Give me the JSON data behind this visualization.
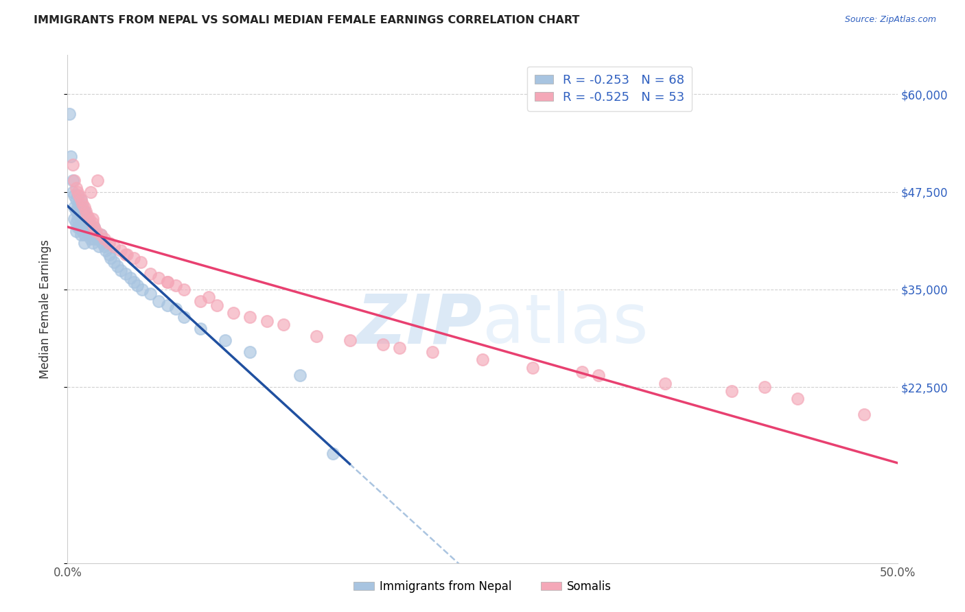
{
  "title": "IMMIGRANTS FROM NEPAL VS SOMALI MEDIAN FEMALE EARNINGS CORRELATION CHART",
  "source": "Source: ZipAtlas.com",
  "ylabel": "Median Female Earnings",
  "xlim": [
    0.0,
    0.5
  ],
  "ylim": [
    0,
    65000
  ],
  "yticks": [
    0,
    22500,
    35000,
    47500,
    60000
  ],
  "ytick_labels": [
    "",
    "$22,500",
    "$35,000",
    "$47,500",
    "$60,000"
  ],
  "xticks": [
    0.0,
    0.05,
    0.1,
    0.15,
    0.2,
    0.25,
    0.3,
    0.35,
    0.4,
    0.45,
    0.5
  ],
  "nepal_R": -0.253,
  "nepal_N": 68,
  "somali_R": -0.525,
  "somali_N": 53,
  "nepal_color": "#a8c4e0",
  "somali_color": "#f4a8b8",
  "nepal_line_color": "#2050a0",
  "somali_line_color": "#e84070",
  "dashed_line_color": "#aac4e0",
  "watermark_color": "#d0e4f4",
  "legend_label_nepal": "Immigrants from Nepal",
  "legend_label_somali": "Somalis",
  "nepal_x": [
    0.001,
    0.002,
    0.003,
    0.003,
    0.004,
    0.004,
    0.004,
    0.005,
    0.005,
    0.005,
    0.005,
    0.006,
    0.006,
    0.006,
    0.006,
    0.007,
    0.007,
    0.007,
    0.008,
    0.008,
    0.008,
    0.008,
    0.009,
    0.009,
    0.009,
    0.01,
    0.01,
    0.01,
    0.01,
    0.011,
    0.011,
    0.012,
    0.012,
    0.013,
    0.013,
    0.014,
    0.014,
    0.015,
    0.015,
    0.016,
    0.016,
    0.017,
    0.018,
    0.019,
    0.02,
    0.021,
    0.022,
    0.023,
    0.025,
    0.026,
    0.028,
    0.03,
    0.032,
    0.035,
    0.038,
    0.04,
    0.042,
    0.045,
    0.05,
    0.055,
    0.06,
    0.065,
    0.07,
    0.08,
    0.095,
    0.11,
    0.14,
    0.16
  ],
  "nepal_y": [
    57500,
    52000,
    47500,
    49000,
    47000,
    45500,
    44000,
    46500,
    45000,
    43500,
    42500,
    47000,
    45500,
    44000,
    43000,
    46000,
    44500,
    43000,
    46500,
    45000,
    43500,
    42000,
    45500,
    44000,
    42500,
    45000,
    43500,
    42000,
    41000,
    44500,
    43000,
    44000,
    42500,
    43500,
    42000,
    43000,
    41500,
    42500,
    41000,
    43000,
    41500,
    42000,
    41500,
    40500,
    42000,
    41000,
    40500,
    40000,
    39500,
    39000,
    38500,
    38000,
    37500,
    37000,
    36500,
    36000,
    35500,
    35000,
    34500,
    33500,
    33000,
    32500,
    31500,
    30000,
    28500,
    27000,
    24000,
    14000
  ],
  "somali_x": [
    0.003,
    0.004,
    0.005,
    0.006,
    0.007,
    0.008,
    0.009,
    0.01,
    0.011,
    0.012,
    0.013,
    0.014,
    0.015,
    0.016,
    0.017,
    0.018,
    0.02,
    0.022,
    0.025,
    0.028,
    0.032,
    0.036,
    0.04,
    0.044,
    0.05,
    0.055,
    0.06,
    0.065,
    0.07,
    0.08,
    0.09,
    0.1,
    0.11,
    0.12,
    0.13,
    0.15,
    0.17,
    0.2,
    0.22,
    0.25,
    0.28,
    0.32,
    0.36,
    0.4,
    0.44,
    0.48,
    0.085,
    0.19,
    0.31,
    0.42,
    0.015,
    0.035,
    0.06
  ],
  "somali_y": [
    51000,
    49000,
    48000,
    47500,
    47000,
    46500,
    46000,
    45500,
    45000,
    44500,
    44000,
    47500,
    43500,
    43000,
    42500,
    49000,
    42000,
    41500,
    41000,
    40500,
    40000,
    39500,
    39000,
    38500,
    37000,
    36500,
    36000,
    35500,
    35000,
    33500,
    33000,
    32000,
    31500,
    31000,
    30500,
    29000,
    28500,
    27500,
    27000,
    26000,
    25000,
    24000,
    23000,
    22000,
    21000,
    19000,
    34000,
    28000,
    24500,
    22500,
    44000,
    39500,
    36000
  ]
}
